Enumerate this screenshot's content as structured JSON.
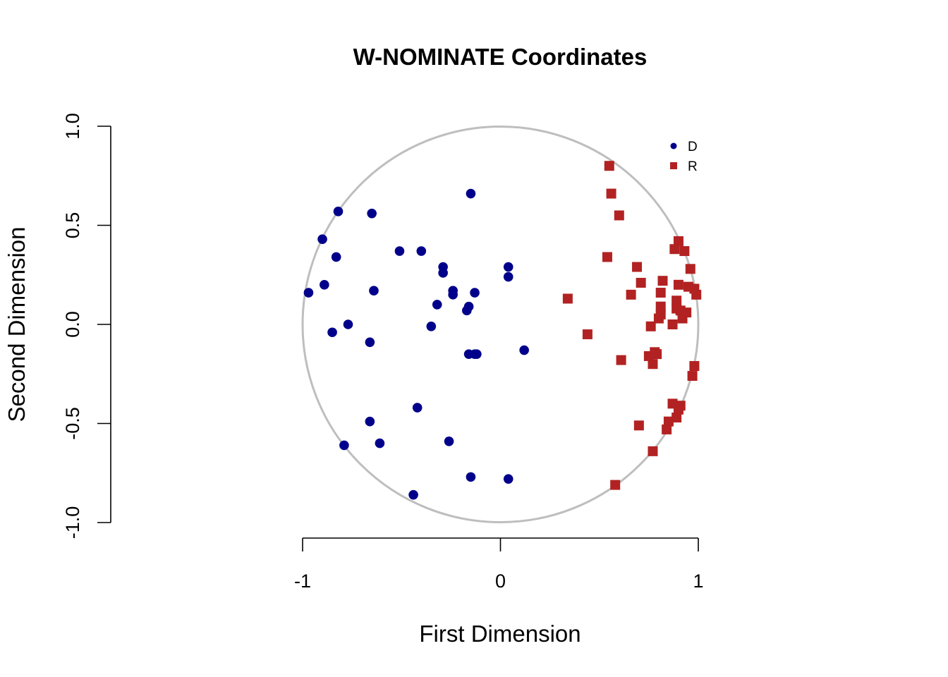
{
  "chart_data": {
    "type": "scatter",
    "title": "W-NOMINATE Coordinates",
    "xlabel": "First Dimension",
    "ylabel": "Second Dimension",
    "xlim": [
      -1,
      1
    ],
    "ylim": [
      -1,
      1
    ],
    "x_ticks": [
      -1,
      0,
      1
    ],
    "y_ticks": [
      -1,
      -0.5,
      0,
      0.5,
      1
    ],
    "x_tick_labels": [
      "-1",
      "0",
      "1"
    ],
    "y_tick_labels": [
      "-1.0",
      "-0.5",
      "0.0",
      "0.5",
      "1.0"
    ],
    "unit_circle": true,
    "circle_color": "#bebebe",
    "grid": false,
    "legend_position": "top-right",
    "series": [
      {
        "name": "D",
        "marker": "circle",
        "color": "#00008b",
        "points": [
          [
            -0.15,
            0.66
          ],
          [
            -0.82,
            0.57
          ],
          [
            -0.65,
            0.56
          ],
          [
            -0.9,
            0.43
          ],
          [
            -0.51,
            0.37
          ],
          [
            -0.4,
            0.37
          ],
          [
            -0.83,
            0.34
          ],
          [
            -0.29,
            0.29
          ],
          [
            -0.29,
            0.26
          ],
          [
            0.04,
            0.29
          ],
          [
            0.04,
            0.24
          ],
          [
            -0.89,
            0.2
          ],
          [
            -0.97,
            0.16
          ],
          [
            -0.64,
            0.17
          ],
          [
            -0.24,
            0.17
          ],
          [
            -0.24,
            0.15
          ],
          [
            -0.13,
            0.16
          ],
          [
            -0.32,
            0.1
          ],
          [
            -0.16,
            0.09
          ],
          [
            -0.17,
            0.07
          ],
          [
            -0.77,
            0.0
          ],
          [
            -0.35,
            -0.01
          ],
          [
            -0.85,
            -0.04
          ],
          [
            -0.66,
            -0.09
          ],
          [
            0.12,
            -0.13
          ],
          [
            -0.16,
            -0.15
          ],
          [
            -0.13,
            -0.15
          ],
          [
            -0.12,
            -0.15
          ],
          [
            -0.42,
            -0.42
          ],
          [
            -0.66,
            -0.49
          ],
          [
            -0.79,
            -0.61
          ],
          [
            -0.61,
            -0.6
          ],
          [
            -0.26,
            -0.59
          ],
          [
            -0.15,
            -0.77
          ],
          [
            0.04,
            -0.78
          ],
          [
            -0.44,
            -0.86
          ]
        ]
      },
      {
        "name": "R",
        "marker": "square",
        "color": "#b22222",
        "points": [
          [
            0.55,
            0.8
          ],
          [
            0.56,
            0.66
          ],
          [
            0.6,
            0.55
          ],
          [
            0.54,
            0.34
          ],
          [
            0.9,
            0.42
          ],
          [
            0.88,
            0.38
          ],
          [
            0.93,
            0.37
          ],
          [
            0.69,
            0.29
          ],
          [
            0.96,
            0.28
          ],
          [
            0.71,
            0.21
          ],
          [
            0.82,
            0.22
          ],
          [
            0.9,
            0.2
          ],
          [
            0.95,
            0.19
          ],
          [
            0.98,
            0.18
          ],
          [
            0.99,
            0.15
          ],
          [
            0.81,
            0.16
          ],
          [
            0.66,
            0.15
          ],
          [
            0.34,
            0.13
          ],
          [
            0.89,
            0.12
          ],
          [
            0.81,
            0.09
          ],
          [
            0.89,
            0.08
          ],
          [
            0.81,
            0.05
          ],
          [
            0.91,
            0.07
          ],
          [
            0.94,
            0.06
          ],
          [
            0.92,
            0.03
          ],
          [
            0.8,
            0.03
          ],
          [
            0.87,
            0.0
          ],
          [
            0.76,
            -0.01
          ],
          [
            0.44,
            -0.05
          ],
          [
            0.78,
            -0.14
          ],
          [
            0.79,
            -0.15
          ],
          [
            0.75,
            -0.16
          ],
          [
            0.77,
            -0.2
          ],
          [
            0.61,
            -0.18
          ],
          [
            0.98,
            -0.21
          ],
          [
            0.97,
            -0.26
          ],
          [
            0.87,
            -0.4
          ],
          [
            0.91,
            -0.41
          ],
          [
            0.9,
            -0.43
          ],
          [
            0.89,
            -0.47
          ],
          [
            0.85,
            -0.49
          ],
          [
            0.84,
            -0.53
          ],
          [
            0.7,
            -0.51
          ],
          [
            0.77,
            -0.64
          ],
          [
            0.58,
            -0.81
          ]
        ]
      }
    ]
  }
}
